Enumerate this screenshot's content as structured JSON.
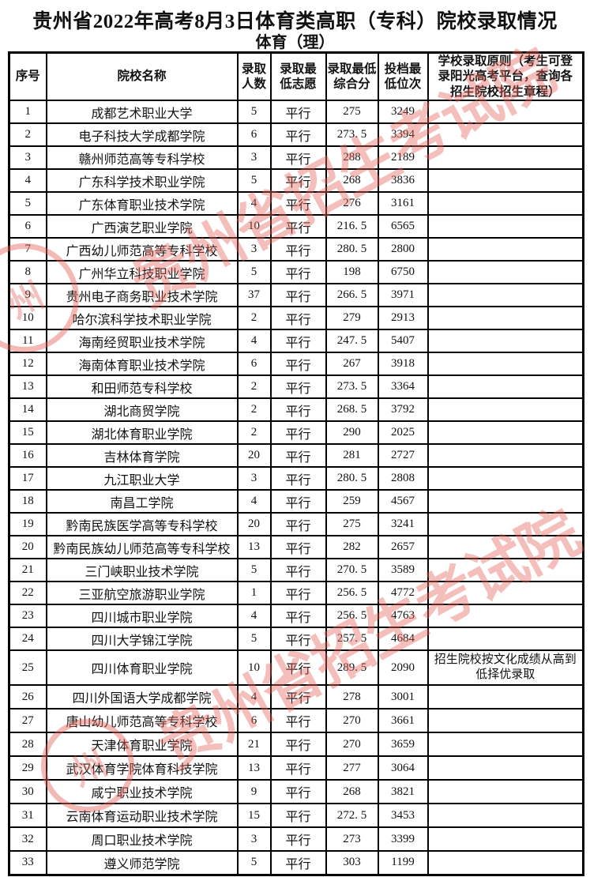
{
  "title": "贵州省2022年高考8月3日体育类高职（专科）院校录取情况",
  "subtitle": "体育（理）",
  "watermark": {
    "text": "贵州省招生考试院",
    "seal_glyph": "州",
    "color": "#e4675c"
  },
  "table": {
    "headers": [
      "序号",
      "院校名称",
      "录取\n人数",
      "录取最\n低志愿",
      "录取最低\n综合分",
      "投档最\n低位次",
      "学校录取原则（考生可登\n录阳光高考平台，查询各\n招生院校招生章程）"
    ],
    "rows": [
      {
        "no": "1",
        "name": "成都艺术职业大学",
        "count": "5",
        "pref": "平行",
        "score": "275",
        "rank": "3249",
        "principle": ""
      },
      {
        "no": "2",
        "name": "电子科技大学成都学院",
        "count": "6",
        "pref": "平行",
        "score": "273. 5",
        "rank": "3394",
        "principle": ""
      },
      {
        "no": "3",
        "name": "赣州师范高等专科学校",
        "count": "3",
        "pref": "平行",
        "score": "288",
        "rank": "2189",
        "principle": ""
      },
      {
        "no": "4",
        "name": "广东科学技术职业学院",
        "count": "5",
        "pref": "平行",
        "score": "268",
        "rank": "3836",
        "principle": ""
      },
      {
        "no": "5",
        "name": "广东体育职业技术学院",
        "count": "4",
        "pref": "平行",
        "score": "276",
        "rank": "3161",
        "principle": ""
      },
      {
        "no": "6",
        "name": "广西演艺职业学院",
        "count": "10",
        "pref": "平行",
        "score": "216. 5",
        "rank": "6565",
        "principle": ""
      },
      {
        "no": "7",
        "name": "广西幼儿师范高等专科学校",
        "count": "3",
        "pref": "平行",
        "score": "280. 5",
        "rank": "2800",
        "principle": ""
      },
      {
        "no": "8",
        "name": "广州华立科技职业学院",
        "count": "5",
        "pref": "平行",
        "score": "198",
        "rank": "6750",
        "principle": ""
      },
      {
        "no": "9",
        "name": "贵州电子商务职业技术学院",
        "count": "37",
        "pref": "平行",
        "score": "266. 5",
        "rank": "3971",
        "principle": ""
      },
      {
        "no": "10",
        "name": "哈尔滨科学技术职业学院",
        "count": "2",
        "pref": "平行",
        "score": "279",
        "rank": "2913",
        "principle": ""
      },
      {
        "no": "11",
        "name": "海南经贸职业技术学院",
        "count": "4",
        "pref": "平行",
        "score": "247. 5",
        "rank": "5407",
        "principle": ""
      },
      {
        "no": "12",
        "name": "海南体育职业技术学院",
        "count": "6",
        "pref": "平行",
        "score": "267",
        "rank": "3918",
        "principle": ""
      },
      {
        "no": "13",
        "name": "和田师范专科学校",
        "count": "2",
        "pref": "平行",
        "score": "273. 5",
        "rank": "3364",
        "principle": ""
      },
      {
        "no": "14",
        "name": "湖北商贸学院",
        "count": "2",
        "pref": "平行",
        "score": "268. 5",
        "rank": "3792",
        "principle": ""
      },
      {
        "no": "15",
        "name": "湖北体育职业学院",
        "count": "2",
        "pref": "平行",
        "score": "290",
        "rank": "2025",
        "principle": ""
      },
      {
        "no": "16",
        "name": "吉林体育学院",
        "count": "20",
        "pref": "平行",
        "score": "281",
        "rank": "2727",
        "principle": ""
      },
      {
        "no": "17",
        "name": "九江职业大学",
        "count": "3",
        "pref": "平行",
        "score": "280. 5",
        "rank": "2808",
        "principle": ""
      },
      {
        "no": "18",
        "name": "南昌工学院",
        "count": "4",
        "pref": "平行",
        "score": "259",
        "rank": "4567",
        "principle": ""
      },
      {
        "no": "19",
        "name": "黔南民族医学高等专科学校",
        "count": "20",
        "pref": "平行",
        "score": "275",
        "rank": "3241",
        "principle": ""
      },
      {
        "no": "20",
        "name": "黔南民族幼儿师范高等专科学校",
        "count": "13",
        "pref": "平行",
        "score": "282",
        "rank": "2657",
        "principle": ""
      },
      {
        "no": "21",
        "name": "三门峡职业技术学院",
        "count": "5",
        "pref": "平行",
        "score": "270. 5",
        "rank": "3589",
        "principle": ""
      },
      {
        "no": "22",
        "name": "三亚航空旅游职业学院",
        "count": "1",
        "pref": "平行",
        "score": "256. 5",
        "rank": "4772",
        "principle": ""
      },
      {
        "no": "23",
        "name": "四川城市职业学院",
        "count": "4",
        "pref": "平行",
        "score": "256. 5",
        "rank": "4763",
        "principle": ""
      },
      {
        "no": "24",
        "name": "四川大学锦江学院",
        "count": "5",
        "pref": "平行",
        "score": "257. 5",
        "rank": "4684",
        "principle": ""
      },
      {
        "no": "25",
        "name": "四川体育职业学院",
        "count": "10",
        "pref": "平行",
        "score": "289. 5",
        "rank": "2090",
        "principle": "招生院校按文化成绩从高到低择优录取"
      },
      {
        "no": "26",
        "name": "四川外国语大学成都学院",
        "count": "4",
        "pref": "平行",
        "score": "278",
        "rank": "3001",
        "principle": ""
      },
      {
        "no": "27",
        "name": "唐山幼儿师范高等专科学校",
        "count": "6",
        "pref": "平行",
        "score": "270",
        "rank": "3661",
        "principle": ""
      },
      {
        "no": "28",
        "name": "天津体育职业学院",
        "count": "21",
        "pref": "平行",
        "score": "270",
        "rank": "3659",
        "principle": ""
      },
      {
        "no": "29",
        "name": "武汉体育学院体育科技学院",
        "count": "13",
        "pref": "平行",
        "score": "277",
        "rank": "3064",
        "principle": ""
      },
      {
        "no": "30",
        "name": "咸宁职业技术学院",
        "count": "9",
        "pref": "平行",
        "score": "268",
        "rank": "3821",
        "principle": ""
      },
      {
        "no": "31",
        "name": "云南体育运动职业技术学院",
        "count": "15",
        "pref": "平行",
        "score": "272. 5",
        "rank": "3453",
        "principle": ""
      },
      {
        "no": "32",
        "name": "周口职业技术学院",
        "count": "3",
        "pref": "平行",
        "score": "273",
        "rank": "3399",
        "principle": ""
      },
      {
        "no": "33",
        "name": "遵义师范学院",
        "count": "5",
        "pref": "平行",
        "score": "303",
        "rank": "1199",
        "principle": ""
      }
    ]
  }
}
